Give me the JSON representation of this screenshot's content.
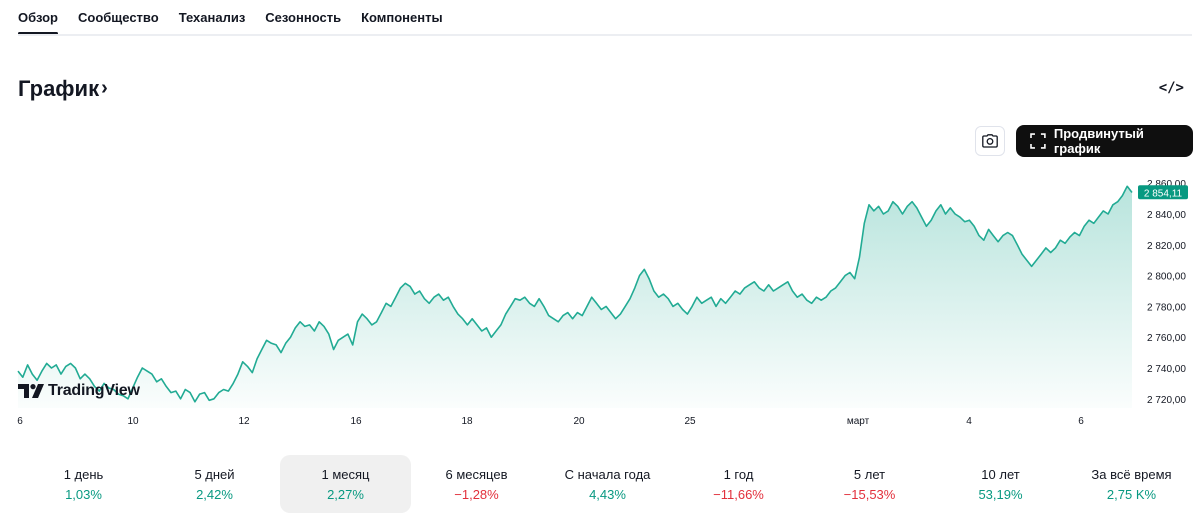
{
  "tabs": [
    {
      "label": "Обзор",
      "active": true
    },
    {
      "label": "Сообщество",
      "active": false
    },
    {
      "label": "Теханализ",
      "active": false
    },
    {
      "label": "Сезонность",
      "active": false
    },
    {
      "label": "Компоненты",
      "active": false
    }
  ],
  "section": {
    "title": "График",
    "chevron": "›",
    "embed_icon": "</>"
  },
  "toolbar": {
    "snapshot_icon": "camera-icon",
    "advanced_label": "Продвинутый график",
    "advanced_icon": "fullscreen-icon"
  },
  "branding": {
    "logo_text": "TradingView"
  },
  "colors": {
    "line": "#22ab94",
    "area_top": "#22ab94",
    "price_label_bg": "#089981",
    "positive": "#089981",
    "negative": "#e2303c"
  },
  "chart_data": {
    "type": "area",
    "x_tick_labels": [
      "6",
      "10",
      "12",
      "16",
      "18",
      "20",
      "25",
      "март",
      "4",
      "6"
    ],
    "y_tick_labels": [
      "2 860,00",
      "2 840,00",
      "2 820,00",
      "2 800,00",
      "2 780,00",
      "2 760,00",
      "2 740,00",
      "2 720,00"
    ],
    "ylim": [
      2714,
      2866
    ],
    "last_price": 2854.11,
    "last_price_label": "2 854,11",
    "values": [
      2738,
      2734,
      2742,
      2736,
      2732,
      2738,
      2743,
      2740,
      2742,
      2736,
      2741,
      2743,
      2740,
      2733,
      2736,
      2733,
      2728,
      2725,
      2730,
      2727,
      2726,
      2723,
      2722,
      2720,
      2727,
      2734,
      2740,
      2738,
      2736,
      2731,
      2733,
      2728,
      2724,
      2725,
      2720,
      2726,
      2724,
      2718,
      2723,
      2724,
      2719,
      2720,
      2724,
      2726,
      2725,
      2730,
      2736,
      2744,
      2741,
      2737,
      2746,
      2752,
      2758,
      2756,
      2755,
      2750,
      2756,
      2760,
      2766,
      2770,
      2767,
      2768,
      2764,
      2770,
      2767,
      2762,
      2752,
      2758,
      2760,
      2762,
      2755,
      2770,
      2775,
      2772,
      2768,
      2770,
      2776,
      2782,
      2780,
      2786,
      2792,
      2795,
      2793,
      2788,
      2790,
      2785,
      2782,
      2786,
      2788,
      2784,
      2786,
      2780,
      2775,
      2772,
      2768,
      2772,
      2768,
      2764,
      2766,
      2760,
      2764,
      2768,
      2775,
      2780,
      2785,
      2784,
      2786,
      2782,
      2780,
      2785,
      2780,
      2774,
      2772,
      2770,
      2774,
      2776,
      2772,
      2776,
      2774,
      2780,
      2786,
      2782,
      2778,
      2780,
      2776,
      2772,
      2775,
      2780,
      2785,
      2792,
      2800,
      2804,
      2798,
      2790,
      2786,
      2788,
      2785,
      2780,
      2782,
      2778,
      2775,
      2780,
      2786,
      2782,
      2784,
      2786,
      2780,
      2785,
      2782,
      2786,
      2790,
      2788,
      2792,
      2794,
      2796,
      2792,
      2790,
      2794,
      2790,
      2792,
      2794,
      2796,
      2790,
      2786,
      2788,
      2784,
      2782,
      2786,
      2784,
      2786,
      2790,
      2792,
      2796,
      2800,
      2802,
      2798,
      2812,
      2834,
      2846,
      2842,
      2845,
      2840,
      2842,
      2848,
      2845,
      2840,
      2845,
      2848,
      2844,
      2838,
      2832,
      2836,
      2842,
      2846,
      2840,
      2844,
      2840,
      2838,
      2835,
      2836,
      2832,
      2826,
      2823,
      2830,
      2826,
      2822,
      2826,
      2828,
      2826,
      2820,
      2814,
      2810,
      2806,
      2810,
      2814,
      2818,
      2815,
      2818,
      2823,
      2821,
      2825,
      2828,
      2826,
      2832,
      2836,
      2834,
      2838,
      2842,
      2840,
      2846,
      2848,
      2852,
      2858,
      2854
    ]
  },
  "periods": [
    {
      "label": "1 день",
      "value": "1,03%",
      "sign": "pos",
      "active": false
    },
    {
      "label": "5 дней",
      "value": "2,42%",
      "sign": "pos",
      "active": false
    },
    {
      "label": "1 месяц",
      "value": "2,27%",
      "sign": "pos",
      "active": true
    },
    {
      "label": "6 месяцев",
      "value": "−1,28%",
      "sign": "neg",
      "active": false
    },
    {
      "label": "С начала года",
      "value": "4,43%",
      "sign": "pos",
      "active": false
    },
    {
      "label": "1 год",
      "value": "−11,66%",
      "sign": "neg",
      "active": false
    },
    {
      "label": "5 лет",
      "value": "−15,53%",
      "sign": "neg",
      "active": false
    },
    {
      "label": "10 лет",
      "value": "53,19%",
      "sign": "pos",
      "active": false
    },
    {
      "label": "За всё время",
      "value": "2,75 K%",
      "sign": "pos",
      "active": false
    }
  ]
}
